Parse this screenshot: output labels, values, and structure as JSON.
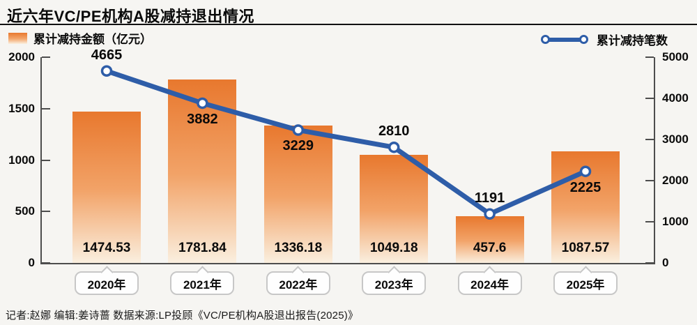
{
  "page": {
    "title": "近六年VC/PE机构A股减持退出情况",
    "footer": "记者:赵娜  编辑:姜诗蔷  数据来源:LP投顾《VC/PE机构A股退出报告(2025)》"
  },
  "legend": {
    "bars_label": "累计减持金额（亿元）",
    "line_label": "累计减持笔数"
  },
  "chart_data": {
    "type": "bar+line",
    "title": "近六年VC/PE机构A股减持退出情况",
    "categories": [
      "2020年",
      "2021年",
      "2022年",
      "2023年",
      "2024年",
      "2025年"
    ],
    "series": [
      {
        "name": "累计减持金额（亿元）",
        "type": "bar",
        "axis": "left",
        "values": [
          1474.53,
          1781.84,
          1336.18,
          1049.18,
          457.6,
          1087.57
        ],
        "value_labels": [
          "1474.53",
          "1781.84",
          "1336.18",
          "1049.18",
          "457.6",
          "1087.57"
        ]
      },
      {
        "name": "累计减持笔数",
        "type": "line",
        "axis": "right",
        "values": [
          4665,
          3882,
          3229,
          2810,
          1191,
          2225
        ],
        "value_labels": [
          "4665",
          "3882",
          "3229",
          "2810",
          "1191",
          "2225"
        ],
        "label_side": [
          "above",
          "below",
          "below",
          "above",
          "above",
          "below"
        ]
      }
    ],
    "left_axis": {
      "min": 0,
      "max": 2000,
      "ticks": [
        0,
        500,
        1000,
        1500,
        2000
      ]
    },
    "right_axis": {
      "min": 0,
      "max": 5000,
      "ticks": [
        0,
        1000,
        2000,
        3000,
        4000,
        5000
      ]
    },
    "grid": false,
    "legend_position": "top",
    "colors": {
      "bar_gradient_top": "#e8782e",
      "bar_gradient_bottom": "#faefdf",
      "line": "#2e5da8",
      "marker_fill": "#ffffff",
      "axis": "#4d4d4d"
    }
  }
}
